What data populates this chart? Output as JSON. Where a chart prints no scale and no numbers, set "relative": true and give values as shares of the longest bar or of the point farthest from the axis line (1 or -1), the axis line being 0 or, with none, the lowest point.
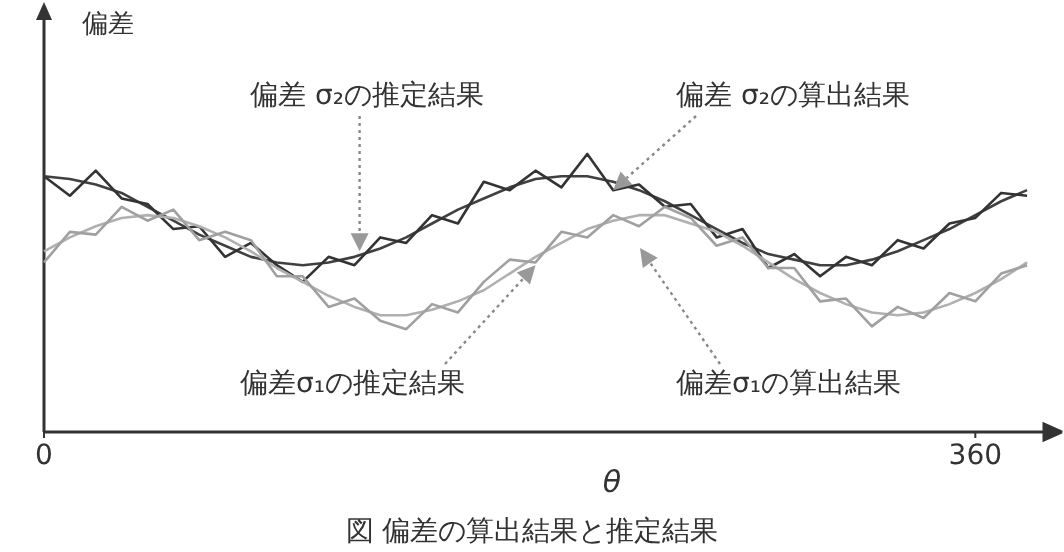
{
  "chart_data": {
    "type": "line",
    "relative": true,
    "xlabel": "θ",
    "ylabel": "偏差",
    "xlim": [
      0,
      385
    ],
    "xticks": [
      0,
      360
    ],
    "x": [
      0,
      10,
      20,
      30,
      40,
      50,
      60,
      70,
      80,
      90,
      100,
      110,
      120,
      130,
      140,
      150,
      160,
      170,
      180,
      190,
      200,
      210,
      220,
      230,
      240,
      250,
      260,
      270,
      280,
      290,
      300,
      310,
      320,
      330,
      340,
      350,
      360,
      370,
      380
    ],
    "series": [
      {
        "color": "#404040",
        "values": [
          0.92,
          0.91,
          0.89,
          0.86,
          0.81,
          0.76,
          0.71,
          0.67,
          0.63,
          0.61,
          0.6,
          0.61,
          0.63,
          0.66,
          0.7,
          0.75,
          0.8,
          0.84,
          0.88,
          0.91,
          0.92,
          0.92,
          0.9,
          0.87,
          0.83,
          0.78,
          0.73,
          0.68,
          0.64,
          0.62,
          0.6,
          0.6,
          0.62,
          0.65,
          0.69,
          0.73,
          0.78,
          0.83,
          0.87
        ]
      },
      {
        "color": "#333333",
        "values": [
          0.92,
          0.85,
          0.94,
          0.84,
          0.82,
          0.73,
          0.74,
          0.63,
          0.68,
          0.6,
          0.54,
          0.63,
          0.6,
          0.7,
          0.68,
          0.78,
          0.75,
          0.9,
          0.87,
          0.94,
          0.88,
          1.0,
          0.87,
          0.89,
          0.81,
          0.82,
          0.7,
          0.73,
          0.59,
          0.64,
          0.56,
          0.63,
          0.6,
          0.69,
          0.66,
          0.75,
          0.77,
          0.86,
          0.85
        ]
      },
      {
        "color": "#b0b0b0",
        "values": [
          0.65,
          0.7,
          0.74,
          0.77,
          0.78,
          0.77,
          0.74,
          0.7,
          0.65,
          0.59,
          0.54,
          0.49,
          0.45,
          0.42,
          0.42,
          0.44,
          0.47,
          0.51,
          0.57,
          0.63,
          0.68,
          0.73,
          0.76,
          0.78,
          0.78,
          0.75,
          0.72,
          0.67,
          0.61,
          0.55,
          0.5,
          0.46,
          0.43,
          0.42,
          0.43,
          0.46,
          0.5,
          0.55,
          0.61
        ]
      },
      {
        "color": "#a0a0a0",
        "values": [
          0.61,
          0.72,
          0.71,
          0.81,
          0.76,
          0.8,
          0.69,
          0.72,
          0.69,
          0.56,
          0.56,
          0.45,
          0.48,
          0.4,
          0.37,
          0.46,
          0.43,
          0.54,
          0.62,
          0.61,
          0.72,
          0.7,
          0.78,
          0.74,
          0.81,
          0.77,
          0.67,
          0.7,
          0.59,
          0.59,
          0.47,
          0.48,
          0.38,
          0.45,
          0.41,
          0.5,
          0.47,
          0.57,
          0.6
        ]
      }
    ],
    "annotations": [
      {
        "text": "偏差 σ₂の推定結果",
        "x": 122,
        "y": 0.65
      },
      {
        "text": "偏差 σ₂の算出結果",
        "x": 220,
        "y": 0.87
      },
      {
        "text": "偏差σ₁の推定結果",
        "x": 190,
        "y": 0.6
      },
      "偏差σ₁の算出結果",
      "図 偏差の算出結果と推定結果"
    ]
  }
}
